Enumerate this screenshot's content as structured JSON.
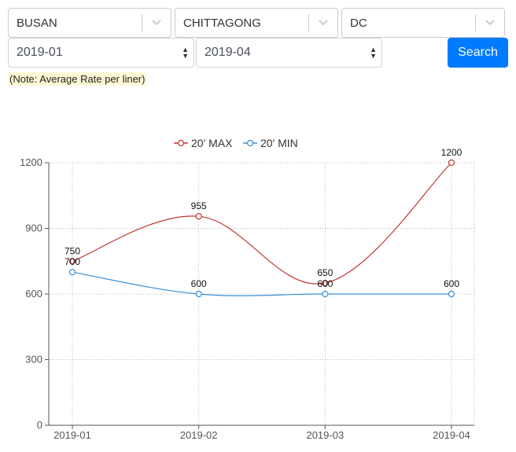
{
  "filters": {
    "origin": "BUSAN",
    "destination": "CHITTAGONG",
    "container": "DC",
    "from_month": "2019-01",
    "to_month": "2019-04",
    "search_label": "Search",
    "note": "(Note: Average Rate per liner)"
  },
  "icons": {
    "combo_chevron": "chevron-down-icon",
    "select_arrows": "select-updown-arrows-icon"
  },
  "colors": {
    "max": "#c23531",
    "min": "#3a8fd6",
    "button": "#007bff"
  },
  "chart_data": {
    "type": "line",
    "categories": [
      "2019-01",
      "2019-02",
      "2019-03",
      "2019-04"
    ],
    "series": [
      {
        "name": "20' MAX",
        "values": [
          750,
          955,
          650,
          1200
        ]
      },
      {
        "name": "20' MIN",
        "values": [
          700,
          600,
          600,
          600
        ]
      }
    ],
    "ylim": [
      0,
      1200
    ],
    "yticks": [
      0,
      300,
      600,
      900,
      1200
    ],
    "grid": true,
    "legend": "top-center",
    "smooth": true
  }
}
